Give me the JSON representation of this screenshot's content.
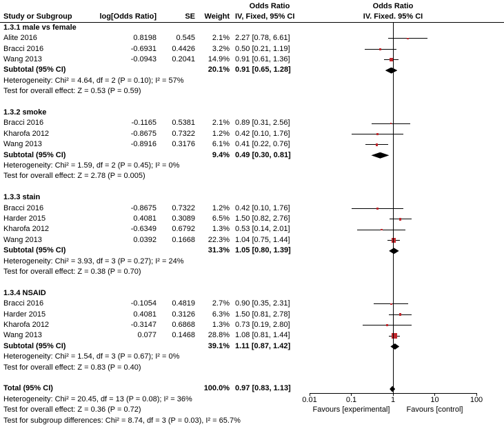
{
  "figure": {
    "header": {
      "or_col_title": "Odds Ratio",
      "or_plot_title": "Odds Ratio",
      "study": "Study or Subgroup",
      "log_or": "log[Odds Ratio]",
      "se": "SE",
      "weight": "Weight",
      "method_text": "IV, Fixed, 95% CI",
      "method_plot": "IV. Fixed. 95% CI"
    }
  },
  "chart_data": {
    "type": "forest",
    "effect_measure": "Odds Ratio",
    "model": "IV, Fixed, 95% CI",
    "xscale": "log",
    "xlim": [
      0.01,
      100
    ],
    "xticks": [
      "0.01",
      "0.1",
      "1",
      "10",
      "100"
    ],
    "xtick_values": [
      0.01,
      0.1,
      1,
      10,
      100
    ],
    "axis_label_left": "Favours [experimental]",
    "axis_label_right": "Favours [control]",
    "marker_color": "#c1272d",
    "diamond_color": "#000000",
    "groups": [
      {
        "label": "1.3.1 male vs female",
        "studies": [
          {
            "name": "Alite 2016",
            "log_or": "0.8198",
            "se": "0.545",
            "weight": "2.1%",
            "w": 2.1,
            "or": 2.27,
            "lo": 0.78,
            "hi": 6.61,
            "ci_text": "2.27 [0.78, 6.61]"
          },
          {
            "name": "Bracci 2016",
            "log_or": "-0.6931",
            "se": "0.4426",
            "weight": "3.2%",
            "w": 3.2,
            "or": 0.5,
            "lo": 0.21,
            "hi": 1.19,
            "ci_text": "0.50 [0.21, 1.19]"
          },
          {
            "name": "Wang 2013",
            "log_or": "-0.0943",
            "se": "0.2041",
            "weight": "14.9%",
            "w": 14.9,
            "or": 0.91,
            "lo": 0.61,
            "hi": 1.36,
            "ci_text": "0.91 [0.61, 1.36]"
          }
        ],
        "subtotal": {
          "label": "Subtotal (95% CI)",
          "weight": "20.1%",
          "or": 0.91,
          "lo": 0.65,
          "hi": 1.28,
          "ci_text": "0.91 [0.65, 1.28]"
        },
        "footnotes": [
          "Heterogeneity: Chi² = 4.64, df = 2 (P = 0.10); I² = 57%",
          "Test for overall effect: Z = 0.53 (P = 0.59)"
        ]
      },
      {
        "label": "1.3.2 smoke",
        "studies": [
          {
            "name": "Bracci 2016",
            "log_or": "-0.1165",
            "se": "0.5381",
            "weight": "2.1%",
            "w": 2.1,
            "or": 0.89,
            "lo": 0.31,
            "hi": 2.56,
            "ci_text": "0.89 [0.31, 2.56]"
          },
          {
            "name": "Kharofa 2012",
            "log_or": "-0.8675",
            "se": "0.7322",
            "weight": "1.2%",
            "w": 1.2,
            "or": 0.42,
            "lo": 0.1,
            "hi": 1.76,
            "ci_text": "0.42 [0.10, 1.76]"
          },
          {
            "name": "Wang 2013",
            "log_or": "-0.8916",
            "se": "0.3176",
            "weight": "6.1%",
            "w": 6.1,
            "or": 0.41,
            "lo": 0.22,
            "hi": 0.76,
            "ci_text": "0.41 [0.22, 0.76]"
          }
        ],
        "subtotal": {
          "label": "Subtotal (95% CI)",
          "weight": "9.4%",
          "or": 0.49,
          "lo": 0.3,
          "hi": 0.81,
          "ci_text": "0.49 [0.30, 0.81]"
        },
        "footnotes": [
          "Heterogeneity: Chi² = 1.59, df = 2 (P = 0.45); I² = 0%",
          "Test for overall effect: Z = 2.78 (P = 0.005)"
        ]
      },
      {
        "label": "1.3.3 stain",
        "studies": [
          {
            "name": "Bracci 2016",
            "log_or": "-0.8675",
            "se": "0.7322",
            "weight": "1.2%",
            "w": 1.2,
            "or": 0.42,
            "lo": 0.1,
            "hi": 1.76,
            "ci_text": "0.42 [0.10, 1.76]"
          },
          {
            "name": "Harder 2015",
            "log_or": "0.4081",
            "se": "0.3089",
            "weight": "6.5%",
            "w": 6.5,
            "or": 1.5,
            "lo": 0.82,
            "hi": 2.76,
            "ci_text": "1.50 [0.82, 2.76]"
          },
          {
            "name": "Kharofa 2012",
            "log_or": "-0.6349",
            "se": "0.6792",
            "weight": "1.3%",
            "w": 1.3,
            "or": 0.53,
            "lo": 0.14,
            "hi": 2.01,
            "ci_text": "0.53 [0.14, 2.01]"
          },
          {
            "name": "Wang 2013",
            "log_or": "0.0392",
            "se": "0.1668",
            "weight": "22.3%",
            "w": 22.3,
            "or": 1.04,
            "lo": 0.75,
            "hi": 1.44,
            "ci_text": "1.04 [0.75, 1.44]"
          }
        ],
        "subtotal": {
          "label": "Subtotal (95% CI)",
          "weight": "31.3%",
          "or": 1.05,
          "lo": 0.8,
          "hi": 1.39,
          "ci_text": "1.05 [0.80, 1.39]"
        },
        "footnotes": [
          "Heterogeneity: Chi² = 3.93, df = 3 (P = 0.27); I² = 24%",
          "Test for overall effect: Z = 0.38 (P = 0.70)"
        ]
      },
      {
        "label": "1.3.4 NSAID",
        "studies": [
          {
            "name": "Bracci 2016",
            "log_or": "-0.1054",
            "se": "0.4819",
            "weight": "2.7%",
            "w": 2.7,
            "or": 0.9,
            "lo": 0.35,
            "hi": 2.31,
            "ci_text": "0.90 [0.35, 2.31]"
          },
          {
            "name": "Harder 2015",
            "log_or": "0.4081",
            "se": "0.3126",
            "weight": "6.3%",
            "w": 6.3,
            "or": 1.5,
            "lo": 0.81,
            "hi": 2.78,
            "ci_text": "1.50 [0.81, 2.78]"
          },
          {
            "name": "Kharofa 2012",
            "log_or": "-0.3147",
            "se": "0.6868",
            "weight": "1.3%",
            "w": 1.3,
            "or": 0.73,
            "lo": 0.19,
            "hi": 2.8,
            "ci_text": "0.73 [0.19, 2.80]"
          },
          {
            "name": "Wang 2013",
            "log_or": "0.077",
            "se": "0.1468",
            "weight": "28.8%",
            "w": 28.8,
            "or": 1.08,
            "lo": 0.81,
            "hi": 1.44,
            "ci_text": "1.08 [0.81, 1.44]"
          }
        ],
        "subtotal": {
          "label": "Subtotal (95% CI)",
          "weight": "39.1%",
          "or": 1.11,
          "lo": 0.87,
          "hi": 1.42,
          "ci_text": "1.11 [0.87, 1.42]"
        },
        "footnotes": [
          "Heterogeneity: Chi² = 1.54, df = 3 (P = 0.67); I² = 0%",
          "Test for overall effect: Z = 0.83 (P = 0.40)"
        ]
      }
    ],
    "total": {
      "label": "Total (95% CI)",
      "weight": "100.0%",
      "or": 0.97,
      "lo": 0.83,
      "hi": 1.13,
      "ci_text": "0.97 [0.83, 1.13]",
      "footnotes": [
        "Heterogeneity: Chi² = 20.45, df = 13 (P = 0.08); I² = 36%",
        "Test for overall effect: Z = 0.36 (P = 0.72)",
        "Test for subgroup differences: Chi² = 8.74, df = 3 (P = 0.03), I² = 65.7%"
      ]
    }
  }
}
